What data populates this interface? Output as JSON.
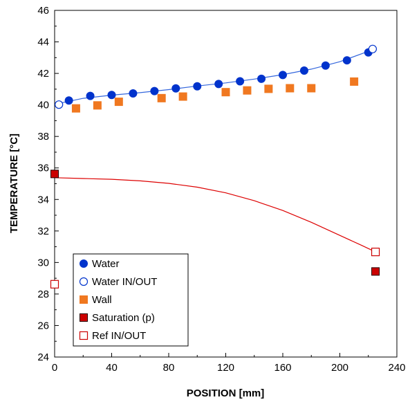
{
  "chart_data": {
    "type": "scatter",
    "xlabel": "POSITION [mm]",
    "ylabel": "TEMPERATURE [°C]",
    "xlim": [
      0,
      240
    ],
    "ylim": [
      24,
      46
    ],
    "xticks": [
      0,
      40,
      80,
      120,
      160,
      200,
      240
    ],
    "yticks": [
      24,
      26,
      28,
      30,
      32,
      34,
      36,
      38,
      40,
      42,
      44,
      46
    ],
    "grid": false,
    "legend_position": "bottom-left",
    "series": [
      {
        "name": "Water",
        "marker": "filled-circle",
        "color": "#0033cc",
        "x": [
          10,
          25,
          40,
          55,
          70,
          85,
          100,
          115,
          130,
          145,
          160,
          175,
          190,
          205,
          220
        ],
        "y": [
          40.28,
          40.57,
          40.63,
          40.73,
          40.88,
          41.05,
          41.18,
          41.33,
          41.5,
          41.66,
          41.9,
          42.18,
          42.5,
          42.83,
          43.33
        ]
      },
      {
        "name": "Water IN/OUT",
        "marker": "open-circle",
        "color": "#0033cc",
        "x": [
          3,
          223
        ],
        "y": [
          40.02,
          43.55
        ]
      },
      {
        "name": "Wall",
        "marker": "filled-square",
        "color": "#f07820",
        "x": [
          15,
          30,
          45,
          75,
          90,
          120,
          135,
          150,
          165,
          180,
          210
        ],
        "y": [
          39.78,
          39.97,
          40.2,
          40.43,
          40.53,
          40.81,
          40.92,
          41.02,
          41.06,
          41.06,
          41.48
        ]
      },
      {
        "name": "Saturation (p)",
        "marker": "filled-square",
        "color": "#cc0000",
        "x": [
          0,
          225
        ],
        "y": [
          35.62,
          29.43
        ]
      },
      {
        "name": "Ref IN/OUT",
        "marker": "open-square",
        "color": "#cc0000",
        "x": [
          0,
          225
        ],
        "y": [
          28.62,
          30.67
        ]
      }
    ],
    "lines": [
      {
        "color": "#3366dd",
        "x": [
          3,
          20,
          40,
          60,
          80,
          100,
          120,
          140,
          160,
          180,
          200,
          223
        ],
        "y": [
          40.1,
          40.42,
          40.62,
          40.78,
          40.97,
          41.2,
          41.4,
          41.64,
          41.92,
          42.27,
          42.74,
          43.5
        ]
      },
      {
        "color": "#dd0000",
        "x": [
          0,
          20,
          40,
          60,
          80,
          100,
          120,
          140,
          160,
          180,
          200,
          215,
          225
        ],
        "y": [
          35.38,
          35.33,
          35.28,
          35.18,
          35.02,
          34.78,
          34.42,
          33.92,
          33.3,
          32.55,
          31.72,
          31.1,
          30.67
        ]
      }
    ]
  }
}
